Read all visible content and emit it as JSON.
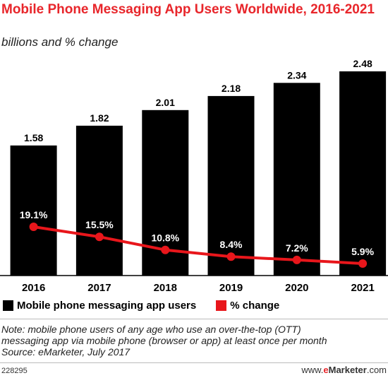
{
  "header": {
    "title": "Mobile Phone Messaging App Users Worldwide, 2016-2021",
    "subtitle": "billions and % change"
  },
  "chart_data": {
    "type": "bar",
    "title": "Mobile Phone Messaging App Users Worldwide, 2016-2021",
    "subtitle": "billions and % change",
    "categories": [
      "2016",
      "2017",
      "2018",
      "2019",
      "2020",
      "2021"
    ],
    "ylim": [
      0,
      2.6
    ],
    "grid": false,
    "legend_position": "bottom",
    "series": [
      {
        "name": "Mobile phone messaging app users",
        "type": "bar",
        "color": "#000000",
        "values": [
          1.58,
          1.82,
          2.01,
          2.18,
          2.34,
          2.48
        ],
        "labels": [
          "1.58",
          "1.82",
          "2.01",
          "2.18",
          "2.34",
          "2.48"
        ]
      },
      {
        "name": "% change",
        "type": "line",
        "color": "#e8161b",
        "values": [
          19.1,
          15.5,
          10.8,
          8.4,
          7.2,
          5.9
        ],
        "labels": [
          "19.1%",
          "15.5%",
          "10.8%",
          "8.4%",
          "7.2%",
          "5.9%"
        ]
      }
    ]
  },
  "legend": {
    "bars_label": "Mobile phone messaging app users",
    "line_label": "% change"
  },
  "footer": {
    "note_line1": "Note: mobile phone users of any age who use an over-the-top (OTT)",
    "note_line2": "messaging app via mobile phone (browser or app) at least once per month",
    "source": "Source: eMarketer, July 2017",
    "chart_id": "228295",
    "brand_prefix": "www.",
    "brand_e": "e",
    "brand_marketer": "Marketer",
    "brand_suffix": ".com"
  }
}
